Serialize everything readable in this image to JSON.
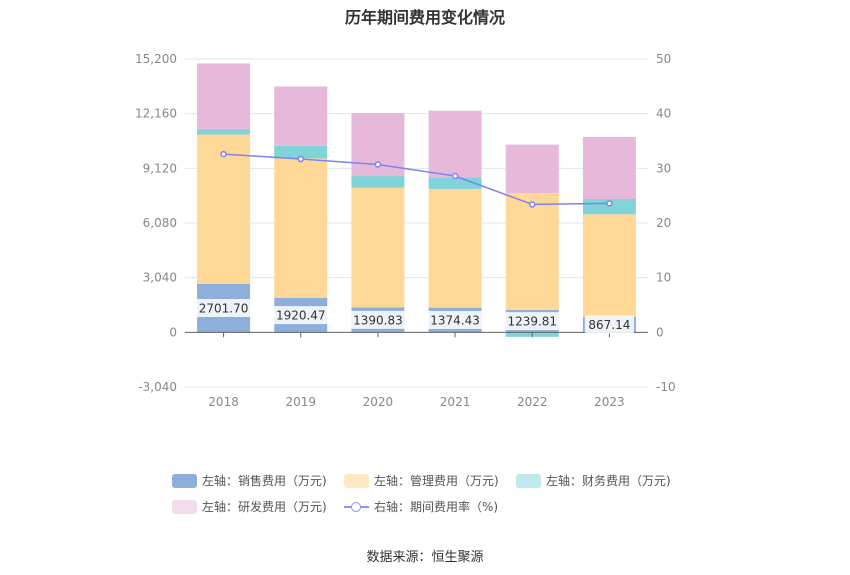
{
  "title": "历年期间费用变化情况",
  "source": "数据来源：恒生聚源",
  "colors": {
    "sales": "#8eaedc",
    "admin": "#ffd898",
    "finance": "#7fd3d9",
    "rd": "#e6b8d9",
    "rate_line": "#7f83ee"
  },
  "legend": [
    {
      "key": "sales",
      "label": "左轴：销售费用（万元)",
      "swatch": "#8eaedc"
    },
    {
      "key": "admin",
      "label": "左轴：管理费用（万元)",
      "swatch": "#ffe8c4"
    },
    {
      "key": "finance",
      "label": "左轴：财务费用（万元)",
      "swatch": "#bfe9ec"
    },
    {
      "key": "rd",
      "label": "左轴：研发费用（万元)",
      "swatch": "#f3dcec"
    },
    {
      "key": "rate",
      "label": "右轴：期间费用率（%)",
      "swatch": "line"
    }
  ],
  "chart_data": {
    "type": "bar",
    "stacked": true,
    "title": "历年期间费用变化情况",
    "categories": [
      "2018",
      "2019",
      "2020",
      "2021",
      "2022",
      "2023"
    ],
    "left_axis": {
      "min": -3040,
      "max": 15200,
      "ticks": [
        -3040,
        0,
        3040,
        6080,
        9120,
        12160,
        15200
      ],
      "tick_labels": [
        "-3,040",
        "0",
        "3,040",
        "6,080",
        "9,120",
        "12,160",
        "15,200"
      ]
    },
    "right_axis": {
      "min": -10,
      "max": 50,
      "ticks": [
        -10,
        0,
        10,
        20,
        30,
        40,
        50
      ],
      "tick_labels": [
        "-10",
        "0",
        "10",
        "20",
        "30",
        "40",
        "50"
      ]
    },
    "grid": true,
    "legend_position": "bottom",
    "series": [
      {
        "name": "左轴：销售费用（万元)",
        "axis": "left",
        "values": [
          2701.7,
          1920.47,
          1390.83,
          1374.43,
          1239.81,
          867.14
        ],
        "labels": [
          "2701.70",
          "1920.47",
          "1390.83",
          "1374.43",
          "1239.81",
          "867.14"
        ]
      },
      {
        "name": "左轴：管理费用（万元)",
        "axis": "left",
        "values": [
          8300,
          7750,
          6650,
          6600,
          6500,
          5700
        ]
      },
      {
        "name": "左轴：财务费用（万元)",
        "axis": "left",
        "values": [
          300,
          700,
          650,
          650,
          -250,
          850
        ]
      },
      {
        "name": "左轴：研发费用（万元)",
        "axis": "left",
        "values": [
          3650,
          3300,
          3500,
          3700,
          2700,
          3450
        ]
      },
      {
        "name": "右轴：期间费用率（%)",
        "axis": "right",
        "type": "line",
        "values": [
          32.6,
          31.7,
          30.7,
          28.6,
          23.4,
          23.6
        ]
      }
    ]
  }
}
